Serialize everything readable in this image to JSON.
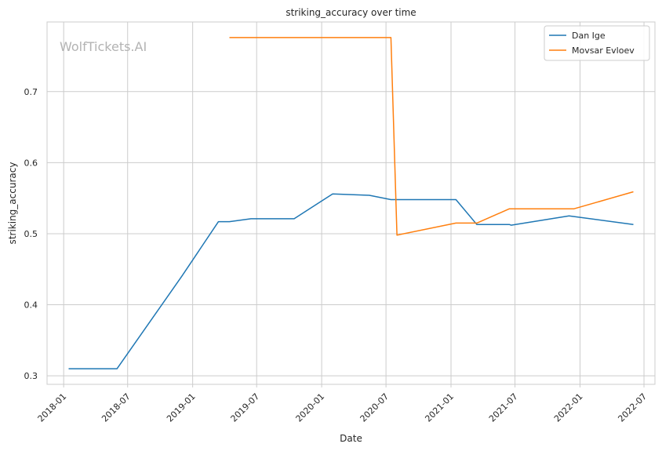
{
  "chart_data": {
    "type": "line",
    "title": "striking_accuracy over time",
    "xlabel": "Date",
    "ylabel": "striking_accuracy",
    "watermark": "WolfTickets.AI",
    "grid": true,
    "legend_position": "top-right",
    "xlim": [
      "2017-11-15",
      "2022-08-01"
    ],
    "ylim": [
      0.288,
      0.798
    ],
    "x_ticks": [
      "2018-01",
      "2018-07",
      "2019-01",
      "2019-07",
      "2020-01",
      "2020-07",
      "2021-01",
      "2021-07",
      "2022-01",
      "2022-07"
    ],
    "y_ticks": [
      0.3,
      0.4,
      0.5,
      0.6,
      0.7
    ],
    "series": [
      {
        "name": "Dan Ige",
        "color": "#1f77b4",
        "points": [
          [
            "2018-01-15",
            0.31
          ],
          [
            "2018-06-01",
            0.31
          ],
          [
            "2018-12-01",
            0.44
          ],
          [
            "2019-03-15",
            0.517
          ],
          [
            "2019-04-15",
            0.517
          ],
          [
            "2019-06-15",
            0.521
          ],
          [
            "2019-10-15",
            0.521
          ],
          [
            "2020-02-01",
            0.556
          ],
          [
            "2020-05-15",
            0.554
          ],
          [
            "2020-07-15",
            0.548
          ],
          [
            "2021-01-15",
            0.548
          ],
          [
            "2021-03-15",
            0.513
          ],
          [
            "2021-06-15",
            0.513
          ],
          [
            "2021-06-20",
            0.512
          ],
          [
            "2021-12-01",
            0.525
          ],
          [
            "2022-06-01",
            0.513
          ]
        ]
      },
      {
        "name": "Movsar Evloev",
        "color": "#ff7f0e",
        "points": [
          [
            "2019-04-15",
            0.776
          ],
          [
            "2020-07-15",
            0.776
          ],
          [
            "2020-08-01",
            0.498
          ],
          [
            "2021-01-15",
            0.515
          ],
          [
            "2021-03-15",
            0.515
          ],
          [
            "2021-06-15",
            0.535
          ],
          [
            "2021-12-15",
            0.535
          ],
          [
            "2022-06-01",
            0.559
          ]
        ]
      }
    ]
  }
}
